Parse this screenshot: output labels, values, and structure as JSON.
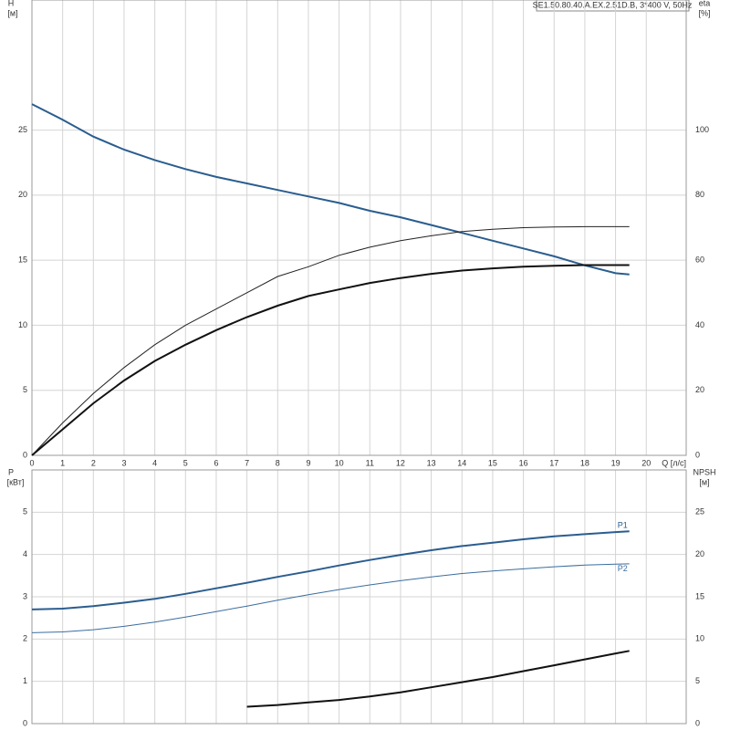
{
  "chart_data": [
    {
      "type": "line",
      "title": "SE1.50.80.40.A.EX.2.51D.B, 3*400 V, 50Hz",
      "y_label": "H",
      "y_unit": "[м]",
      "y2_label": "eta",
      "y2_unit": "[%]",
      "x_label": "Q [л/с]",
      "x": [
        0,
        1,
        2,
        3,
        4,
        5,
        6,
        7,
        8,
        9,
        10,
        11,
        12,
        13,
        14,
        15,
        16,
        17,
        18,
        19,
        19.45
      ],
      "xlim": [
        0,
        21.3
      ],
      "xticks": [
        0,
        1,
        2,
        3,
        4,
        5,
        6,
        7,
        8,
        9,
        10,
        11,
        12,
        13,
        14,
        15,
        16,
        17,
        18,
        19,
        20
      ],
      "ylim": [
        0,
        35
      ],
      "yticks": [
        0,
        5,
        10,
        15,
        20,
        25
      ],
      "y2lim": [
        0,
        140
      ],
      "y2ticks": [
        0,
        20,
        40,
        60,
        80,
        100
      ],
      "grid": true,
      "series": [
        {
          "color": "#2a5d8f",
          "width": 2,
          "values": [
            27,
            25.8,
            24.5,
            23.5,
            22.7,
            22.0,
            21.4,
            20.9,
            20.4,
            19.9,
            19.4,
            18.8,
            18.3,
            17.7,
            17.1,
            16.5,
            15.9,
            15.3,
            14.6,
            14.0,
            13.9
          ]
        },
        {
          "color": "#222222",
          "width": 1,
          "axis": "y2",
          "values": [
            0,
            10,
            19,
            27,
            34,
            40,
            45,
            50,
            55,
            58,
            61.5,
            64,
            66,
            67.5,
            68.8,
            69.5,
            70,
            70.2,
            70.3,
            70.3,
            70.3
          ]
        },
        {
          "color": "#111111",
          "width": 2,
          "axis": "y2",
          "values": [
            0,
            8,
            16,
            23,
            29,
            34,
            38.5,
            42.5,
            46,
            49,
            51,
            53,
            54.5,
            55.8,
            56.8,
            57.5,
            58,
            58.3,
            58.5,
            58.5,
            58.5
          ]
        }
      ]
    },
    {
      "type": "line",
      "y_label": "P",
      "y_unit": "[кВт]",
      "y2_label": "NPSH",
      "y2_unit": "[м]",
      "x": [
        0,
        1,
        2,
        3,
        4,
        5,
        6,
        7,
        8,
        9,
        10,
        11,
        12,
        13,
        14,
        15,
        16,
        17,
        18,
        19,
        19.45
      ],
      "xlim": [
        0,
        21.3
      ],
      "ylim": [
        0,
        6
      ],
      "yticks": [
        0,
        1,
        2,
        3,
        4,
        5
      ],
      "y2lim": [
        0,
        30
      ],
      "y2ticks": [
        0,
        5,
        10,
        15,
        20,
        25
      ],
      "grid": true,
      "series": [
        {
          "name": "P1",
          "color": "#2a5d8f",
          "width": 2,
          "values": [
            2.7,
            2.72,
            2.78,
            2.86,
            2.95,
            3.07,
            3.2,
            3.33,
            3.47,
            3.6,
            3.74,
            3.87,
            3.99,
            4.1,
            4.2,
            4.28,
            4.36,
            4.43,
            4.48,
            4.53,
            4.55
          ]
        },
        {
          "name": "P2",
          "color": "#3a6d9f",
          "width": 1,
          "values": [
            2.15,
            2.17,
            2.22,
            2.3,
            2.4,
            2.52,
            2.65,
            2.78,
            2.92,
            3.05,
            3.17,
            3.28,
            3.38,
            3.47,
            3.55,
            3.61,
            3.66,
            3.71,
            3.75,
            3.77,
            3.78
          ]
        },
        {
          "color": "#111111",
          "width": 2,
          "axis": "y2",
          "values": [
            null,
            null,
            null,
            null,
            null,
            null,
            null,
            2.0,
            2.2,
            2.5,
            2.8,
            3.2,
            3.7,
            4.3,
            4.9,
            5.5,
            6.2,
            6.9,
            7.6,
            8.3,
            8.6
          ]
        }
      ]
    }
  ]
}
